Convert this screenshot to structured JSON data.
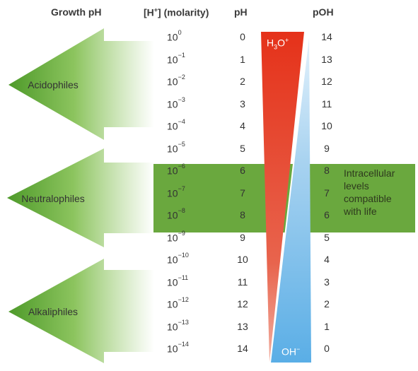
{
  "headers": {
    "growth_ph": "Growth pH",
    "h_molarity_pre": "[H",
    "h_molarity_sup": "+",
    "h_molarity_post": "] (molarity)",
    "ph": "pH",
    "poh": "pOH"
  },
  "scale": [
    {
      "base": "10",
      "exp": "0",
      "ph": "0",
      "poh": "14"
    },
    {
      "base": "10",
      "exp": "−1",
      "ph": "1",
      "poh": "13"
    },
    {
      "base": "10",
      "exp": "−2",
      "ph": "2",
      "poh": "12"
    },
    {
      "base": "10",
      "exp": "−3",
      "ph": "3",
      "poh": "11"
    },
    {
      "base": "10",
      "exp": "−4",
      "ph": "4",
      "poh": "10"
    },
    {
      "base": "10",
      "exp": "−5",
      "ph": "5",
      "poh": "9"
    },
    {
      "base": "10",
      "exp": "−6",
      "ph": "6",
      "poh": "8"
    },
    {
      "base": "10",
      "exp": "−7",
      "ph": "7",
      "poh": "7"
    },
    {
      "base": "10",
      "exp": "−8",
      "ph": "8",
      "poh": "6"
    },
    {
      "base": "10",
      "exp": "−9",
      "ph": "9",
      "poh": "5"
    },
    {
      "base": "10",
      "exp": "−10",
      "ph": "10",
      "poh": "4"
    },
    {
      "base": "10",
      "exp": "−11",
      "ph": "11",
      "poh": "3"
    },
    {
      "base": "10",
      "exp": "−12",
      "ph": "12",
      "poh": "2"
    },
    {
      "base": "10",
      "exp": "−13",
      "ph": "13",
      "poh": "1"
    },
    {
      "base": "10",
      "exp": "−14",
      "ph": "14",
      "poh": "0"
    }
  ],
  "groups": {
    "acidophiles": "Acidophiles",
    "neutralophiles": "Neutralophiles",
    "alkaliphiles": "Alkaliphiles"
  },
  "band_note": {
    "line1": "Intracellular",
    "line2": "levels",
    "line3": "compatible",
    "line4": "with life"
  },
  "triangles": {
    "h3o_pre": "H",
    "h3o_sub": "3",
    "h3o_mid": "O",
    "h3o_sup": "+",
    "oh_pre": "OH",
    "oh_sup": "−"
  },
  "colors": {
    "arrow_green": "#7ab648",
    "band_green": "#6aa83e",
    "h3o_red": "#e23a1f",
    "oh_blue": "#6eb4e6"
  }
}
